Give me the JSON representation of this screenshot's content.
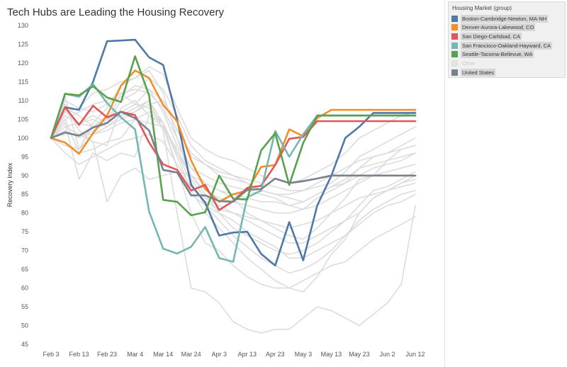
{
  "title": "Tech Hubs are Leading the Housing Recovery",
  "legend": {
    "title": "Housing Market (group)",
    "items": [
      {
        "label": "Boston-Cambridge-Newton, MA-NH",
        "color": "#4e79a7",
        "state": "highlighted"
      },
      {
        "label": "Denver-Aurora-Lakewood, CO",
        "color": "#f28e2b",
        "state": "highlighted"
      },
      {
        "label": "San Diego-Carlsbad, CA",
        "color": "#e15759",
        "state": "highlighted"
      },
      {
        "label": "San Francisco-Oakland-Hayward, CA",
        "color": "#76b7b2",
        "state": "highlighted"
      },
      {
        "label": "Seattle-Tacoma-Bellevue, WA",
        "color": "#59a14f",
        "state": "highlighted"
      },
      {
        "label": "Other",
        "color": "#e2e2e2",
        "state": "muted"
      },
      {
        "label": "United States",
        "color": "#79818c",
        "state": "highlighted"
      }
    ]
  },
  "chart_data": {
    "type": "line",
    "title": "Tech Hubs are Leading the Housing Recovery",
    "xlabel": "",
    "ylabel": "Recovery Index",
    "ylim": [
      45,
      130
    ],
    "yticks": [
      45,
      50,
      55,
      60,
      65,
      70,
      75,
      80,
      85,
      90,
      95,
      100,
      105,
      110,
      115,
      120,
      125,
      130
    ],
    "x": [
      "Feb 3",
      "Feb 8",
      "Feb 13",
      "Feb 18",
      "Feb 23",
      "Feb 28",
      "Mar 4",
      "Mar 9",
      "Mar 14",
      "Mar 19",
      "Mar 24",
      "Mar 29",
      "Apr 3",
      "Apr 8",
      "Apr 13",
      "Apr 18",
      "Apr 23",
      "Apr 28",
      "May 3",
      "May 8",
      "May 13",
      "May 18",
      "May 23",
      "May 28",
      "Jun 2",
      "Jun 7",
      "Jun 12"
    ],
    "xticks": [
      "Feb 3",
      "Feb 13",
      "Feb 23",
      "Mar 4",
      "Mar 14",
      "Mar 24",
      "Apr 3",
      "Apr 13",
      "Apr 23",
      "May 3",
      "May 13",
      "May 23",
      "Jun 2",
      "Jun 12"
    ],
    "grid": false,
    "legend_position": "right",
    "series": [
      {
        "name": "Other",
        "color": "#dcdcdc",
        "values": [
          100,
          111,
          97,
          104,
          108,
          114,
          116,
          118,
          112,
          100,
          89,
          84,
          82,
          80,
          78,
          76,
          74,
          72,
          72,
          74,
          76,
          78,
          82,
          86,
          87,
          89,
          91
        ]
      },
      {
        "name": "Other",
        "color": "#dcdcdc",
        "values": [
          100,
          106,
          104,
          106,
          104,
          112,
          109,
          113,
          107,
          98,
          92,
          90,
          88,
          87,
          86,
          85,
          84,
          82,
          81,
          84,
          86,
          88,
          92,
          95,
          96,
          98,
          100
        ]
      },
      {
        "name": "Other",
        "color": "#dcdcdc",
        "values": [
          100,
          109,
          102,
          99,
          98,
          108,
          110,
          106,
          104,
          96,
          90,
          88,
          86,
          84,
          80,
          78,
          76,
          74,
          73,
          76,
          80,
          84,
          89,
          90,
          94,
          97,
          98
        ]
      },
      {
        "name": "Other",
        "color": "#dcdcdc",
        "values": [
          100,
          98,
          97,
          101,
          103,
          105,
          107,
          109,
          110,
          104,
          95,
          93,
          90,
          89,
          88,
          86,
          85,
          84,
          83,
          85,
          87,
          88,
          90,
          92,
          93,
          94,
          96
        ]
      },
      {
        "name": "Other",
        "color": "#dcdcdc",
        "values": [
          100,
          104,
          89,
          96,
          94,
          96,
          95,
          106,
          103,
          92,
          85,
          82,
          80,
          76,
          74,
          72,
          70,
          69,
          70,
          72,
          75,
          78,
          80,
          84,
          86,
          88,
          90
        ]
      },
      {
        "name": "Other",
        "color": "#dcdcdc",
        "values": [
          100,
          102,
          100,
          102,
          104,
          110,
          112,
          116,
          113,
          106,
          98,
          94,
          92,
          90,
          88,
          86,
          85,
          85,
          86,
          88,
          90,
          92,
          94,
          95,
          96,
          97,
          98
        ]
      },
      {
        "name": "Other",
        "color": "#dcdcdc",
        "values": [
          100,
          101,
          101,
          99,
          83,
          90,
          92,
          89,
          90,
          91,
          90,
          85,
          80,
          78,
          75,
          73,
          71,
          68,
          68,
          70,
          72,
          74,
          77,
          80,
          82,
          83,
          85
        ]
      },
      {
        "name": "Other",
        "color": "#dcdcdc",
        "values": [
          100,
          103,
          104,
          105,
          103,
          106,
          108,
          110,
          104,
          92,
          80,
          72,
          70,
          66,
          63,
          61,
          60,
          60,
          62,
          64,
          66,
          67,
          70,
          73,
          75,
          77,
          79
        ]
      },
      {
        "name": "Other",
        "color": "#dcdcdc",
        "values": [
          100,
          108,
          106,
          103,
          106,
          106,
          107,
          110,
          102,
          80,
          60,
          59,
          56,
          51,
          49,
          48,
          49,
          49,
          52,
          55,
          54,
          52,
          50,
          53,
          56,
          61,
          82
        ]
      },
      {
        "name": "Other",
        "color": "#dcdcdc",
        "values": [
          100,
          105,
          96,
          97,
          99,
          100,
          105,
          107,
          104,
          95,
          86,
          80,
          76,
          72,
          68,
          65,
          62,
          60,
          59,
          63,
          69,
          73,
          80,
          84,
          86,
          88,
          89
        ]
      },
      {
        "name": "Other",
        "color": "#dcdcdc",
        "values": [
          100,
          107,
          108,
          107,
          109,
          111,
          114,
          113,
          110,
          102,
          96,
          93,
          91,
          90,
          89,
          88,
          87,
          86,
          86,
          87,
          88,
          91,
          95,
          97,
          99,
          101,
          103
        ]
      },
      {
        "name": "Other",
        "color": "#dcdcdc",
        "values": [
          100,
          110,
          108,
          112,
          113,
          115,
          116,
          119,
          117,
          108,
          100,
          97,
          95,
          94,
          92,
          90,
          89,
          88,
          89,
          91,
          93,
          96,
          100,
          102,
          104,
          106,
          107
        ]
      },
      {
        "name": "Other",
        "color": "#dcdcdc",
        "values": [
          100,
          103,
          101,
          101,
          102,
          104,
          105,
          104,
          103,
          97,
          90,
          86,
          84,
          83,
          82,
          81,
          80,
          80,
          81,
          82,
          84,
          86,
          88,
          90,
          91,
          92,
          93
        ]
      },
      {
        "name": "Other",
        "color": "#dcdcdc",
        "values": [
          100,
          96,
          93,
          95,
          97,
          99,
          100,
          101,
          99,
          93,
          87,
          83,
          81,
          80,
          79,
          78,
          77,
          76,
          77,
          78,
          80,
          82,
          84,
          85,
          86,
          87,
          88
        ]
      },
      {
        "name": "Other",
        "color": "#dcdcdc",
        "values": [
          100,
          105,
          107,
          109,
          110,
          112,
          113,
          112,
          108,
          100,
          92,
          88,
          86,
          85,
          84,
          83,
          83,
          82,
          83,
          85,
          87,
          89,
          92,
          93,
          94,
          95,
          96
        ]
      },
      {
        "name": "Other",
        "color": "#dcdcdc",
        "values": [
          100,
          107,
          104,
          103,
          105,
          107,
          109,
          108,
          104,
          96,
          88,
          82,
          78,
          74,
          71,
          68,
          66,
          64,
          65,
          67,
          70,
          74,
          78,
          81,
          83,
          85,
          86
        ]
      },
      {
        "name": "Boston-Cambridge-Newton, MA-NH",
        "color": "#4e79a7",
        "values": [
          100,
          108.2,
          107.5,
          115,
          125.8,
          126,
          126.2,
          121.5,
          119.5,
          105,
          87.5,
          82.8,
          74,
          74.8,
          75,
          69.1,
          66,
          77.6,
          67.4,
          82,
          89.9,
          100,
          103,
          106.7,
          106.7,
          106.7,
          106.7
        ]
      },
      {
        "name": "Denver-Aurora-Lakewood, CO",
        "color": "#f28e2b",
        "values": [
          100,
          98.8,
          95.8,
          101.3,
          106,
          114,
          118,
          116,
          108.8,
          104.5,
          94,
          86.5,
          83,
          85,
          86,
          92.3,
          92.8,
          102.3,
          100.5,
          105.3,
          107.5,
          107.5,
          107.5,
          107.5,
          107.5,
          107.5,
          107.5
        ]
      },
      {
        "name": "San Diego-Carlsbad, CA",
        "color": "#e15759",
        "values": [
          100,
          108.2,
          103.5,
          108.6,
          105.5,
          107,
          106.1,
          98.8,
          93,
          91.5,
          86,
          87.5,
          80.8,
          83.2,
          86.7,
          87.3,
          92.8,
          99.8,
          100.3,
          104.5,
          104.5,
          104.5,
          104.5,
          104.5,
          104.5,
          104.5,
          104.5
        ]
      },
      {
        "name": "San Francisco-Oakland-Hayward, CA",
        "color": "#76b7b2",
        "values": [
          100,
          111.8,
          111,
          114.4,
          109.3,
          105.5,
          102.3,
          80.4,
          70.5,
          69.2,
          71,
          76.3,
          68,
          67,
          84.2,
          86,
          101.9,
          95,
          101,
          106,
          106,
          106,
          106,
          106,
          106,
          106,
          106
        ]
      },
      {
        "name": "Seattle-Tacoma-Bellevue, WA",
        "color": "#59a14f",
        "values": [
          100,
          111.8,
          111.4,
          113.8,
          110.8,
          109.6,
          121.8,
          111.3,
          83.5,
          83,
          79.4,
          80.2,
          90,
          83.8,
          83.6,
          96.7,
          101.3,
          87.5,
          98.7,
          106,
          106,
          106,
          106,
          106,
          106,
          106,
          106
        ]
      },
      {
        "name": "United States",
        "color": "#79818c",
        "values": [
          100,
          101.5,
          100.6,
          102.8,
          104,
          107,
          105.3,
          102,
          91.5,
          90.8,
          84.7,
          84.7,
          83.2,
          83,
          86.2,
          86.4,
          89.2,
          88,
          88.5,
          89.2,
          90,
          90,
          90,
          90,
          90,
          90,
          90
        ]
      }
    ]
  }
}
